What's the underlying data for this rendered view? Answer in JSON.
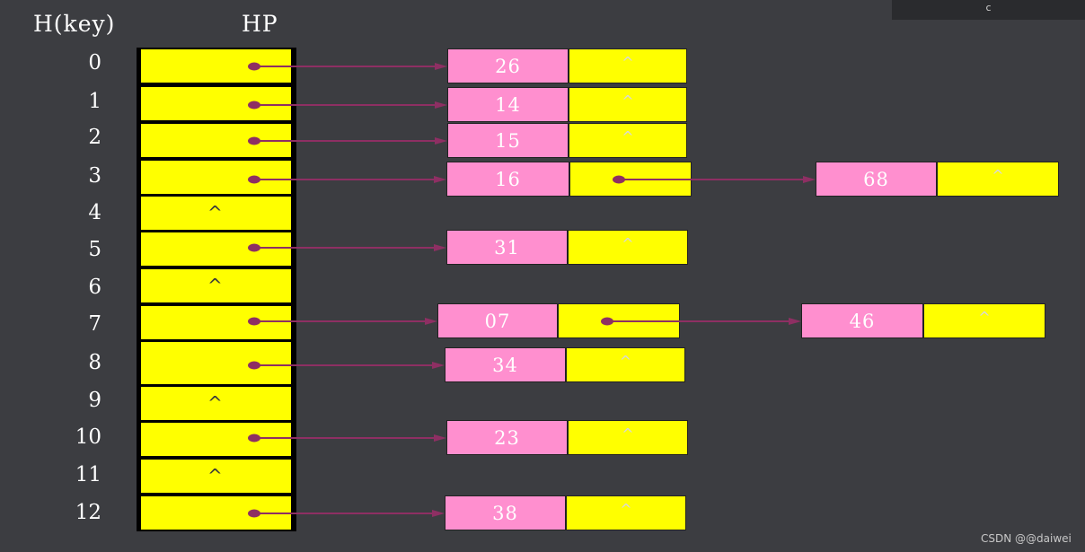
{
  "header": {
    "key_label": "H(key)",
    "table_label": "HP"
  },
  "window": {
    "top_right_text": "c"
  },
  "table": {
    "slots": [
      {
        "index": "0",
        "empty": false
      },
      {
        "index": "1",
        "empty": false
      },
      {
        "index": "2",
        "empty": false
      },
      {
        "index": "3",
        "empty": false
      },
      {
        "index": "4",
        "empty": true,
        "null_symbol": "^"
      },
      {
        "index": "5",
        "empty": false
      },
      {
        "index": "6",
        "empty": true,
        "null_symbol": "^"
      },
      {
        "index": "7",
        "empty": false
      },
      {
        "index": "8",
        "empty": false
      },
      {
        "index": "9",
        "empty": true,
        "null_symbol": "^"
      },
      {
        "index": "10",
        "empty": false
      },
      {
        "index": "11",
        "empty": true,
        "null_symbol": "^"
      },
      {
        "index": "12",
        "empty": false
      }
    ]
  },
  "chains": [
    {
      "slot": "0",
      "nodes": [
        {
          "key": "26",
          "next": "^"
        }
      ]
    },
    {
      "slot": "1",
      "nodes": [
        {
          "key": "14",
          "next": "^"
        }
      ]
    },
    {
      "slot": "2",
      "nodes": [
        {
          "key": "15",
          "next": "^"
        }
      ]
    },
    {
      "slot": "3",
      "nodes": [
        {
          "key": "16"
        },
        {
          "key": "68",
          "next": "^"
        }
      ]
    },
    {
      "slot": "5",
      "nodes": [
        {
          "key": "31",
          "next": "^"
        }
      ]
    },
    {
      "slot": "7",
      "nodes": [
        {
          "key": "07"
        },
        {
          "key": "46",
          "next": "^"
        }
      ]
    },
    {
      "slot": "8",
      "nodes": [
        {
          "key": "34",
          "next": "^"
        }
      ]
    },
    {
      "slot": "10",
      "nodes": [
        {
          "key": "23",
          "next": "^"
        }
      ]
    },
    {
      "slot": "12",
      "nodes": [
        {
          "key": "38",
          "next": "^"
        }
      ]
    }
  ],
  "colors": {
    "background": "#3c3d41",
    "slot_fill": "#ffff00",
    "key_fill": "#ff8fcf",
    "arrow": "#8e2f63"
  },
  "watermark": "CSDN @@daiwei"
}
